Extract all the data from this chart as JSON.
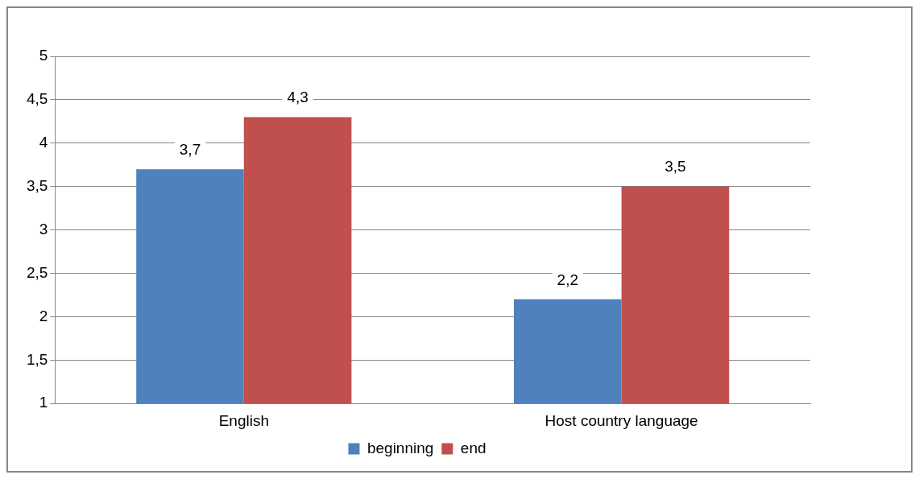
{
  "chart_data": {
    "type": "bar",
    "categories": [
      "English",
      "Host country language"
    ],
    "series": [
      {
        "name": "beginning",
        "color": "#4f81bd",
        "values": [
          3.7,
          2.2
        ],
        "value_labels": [
          "3,7",
          "2,2"
        ]
      },
      {
        "name": "end",
        "color": "#c0504d",
        "values": [
          4.3,
          3.5
        ],
        "value_labels": [
          "4,3",
          "3,5"
        ]
      }
    ],
    "ylim": [
      1,
      5
    ],
    "yticks": [
      1,
      {
        "value": 1.5,
        "label": "1,5"
      },
      2,
      {
        "value": 2.5,
        "label": "2,5"
      },
      3,
      {
        "value": 3.5,
        "label": "3,5"
      },
      4,
      {
        "value": 4.5,
        "label": "4,5"
      },
      5
    ],
    "grid": "y",
    "legend": "bottom"
  }
}
